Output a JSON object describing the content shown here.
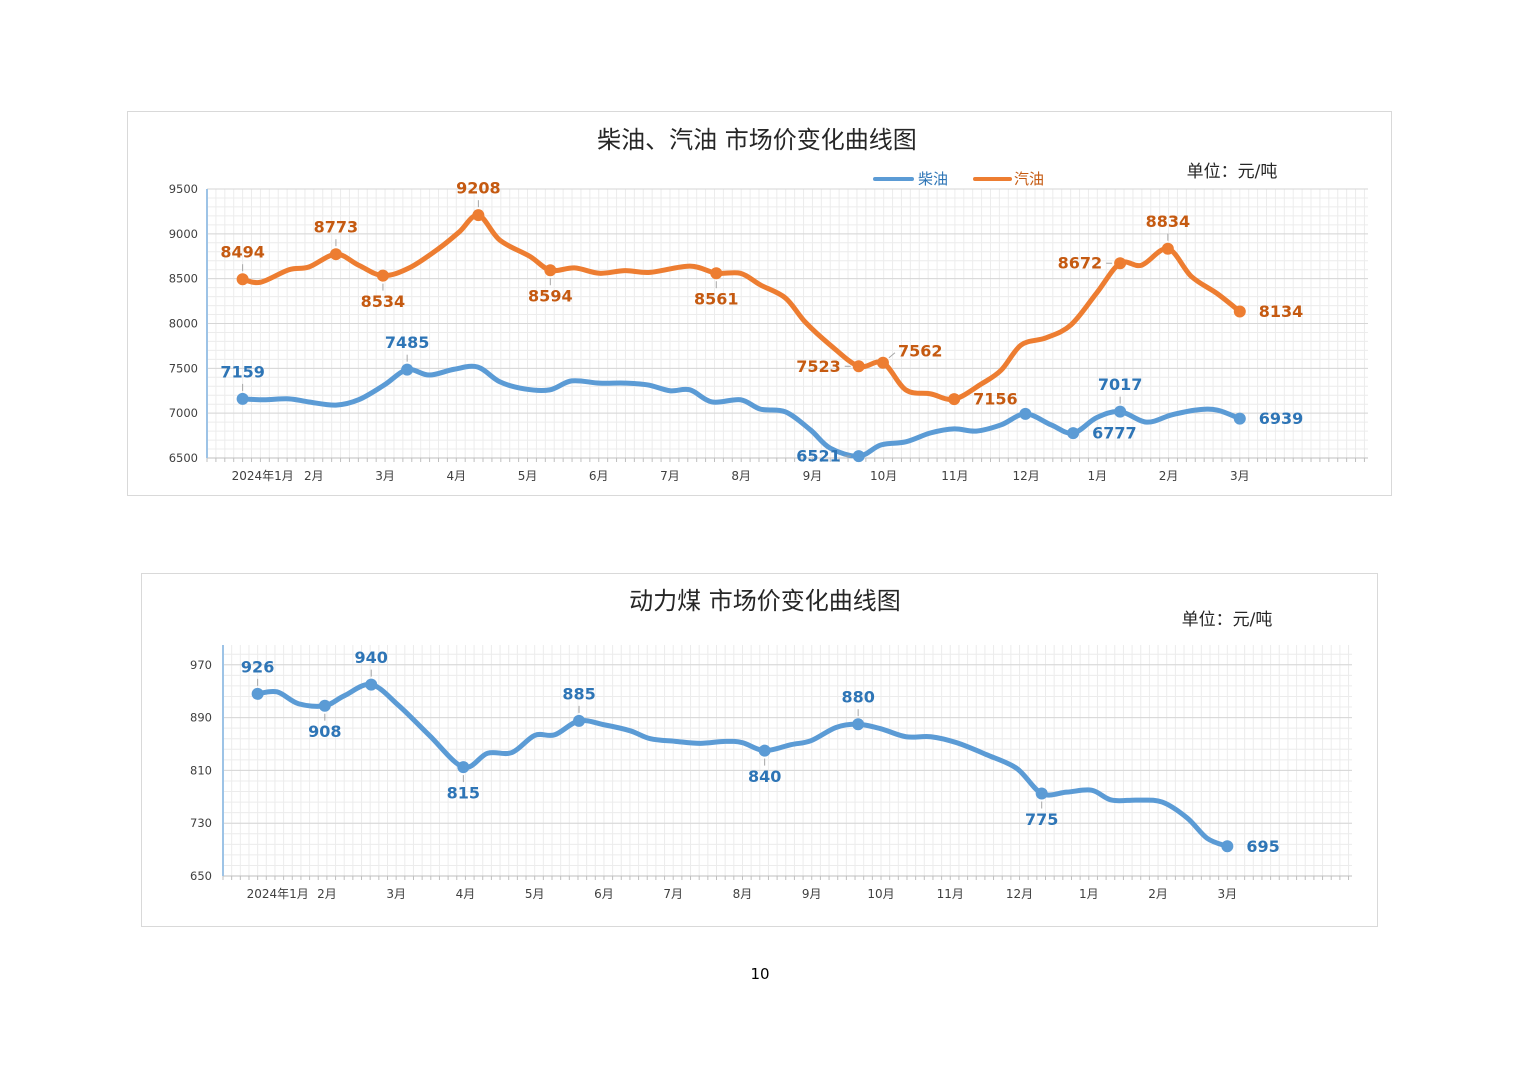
{
  "chart_data": [
    {
      "type": "line",
      "title": "柴油、汽油 市场价变化曲线图",
      "unit": "单位：元/吨",
      "categories": [
        "2024年1月",
        "2月",
        "3月",
        "4月",
        "5月",
        "6月",
        "7月",
        "8月",
        "9月",
        "10月",
        "11月",
        "12月",
        "1月",
        "2月",
        "3月"
      ],
      "xlim": [
        -0.5,
        15.8
      ],
      "ylim": [
        6500,
        9500
      ],
      "yticks": [
        6500,
        7000,
        7500,
        8000,
        8500,
        9000,
        9500
      ],
      "grid": true,
      "legend": "top-right",
      "series": [
        {
          "name": "柴油",
          "color": "#5B9BD5",
          "label_color": "#2E75B6",
          "points": [
            [
              0,
              7159
            ],
            [
              0.3,
              7150
            ],
            [
              0.65,
              7160
            ],
            [
              0.93,
              7125
            ],
            [
              1.31,
              7090
            ],
            [
              1.63,
              7150
            ],
            [
              1.99,
              7315
            ],
            [
              2.31,
              7485
            ],
            [
              2.62,
              7425
            ],
            [
              2.97,
              7490
            ],
            [
              3.3,
              7515
            ],
            [
              3.61,
              7350
            ],
            [
              3.96,
              7270
            ],
            [
              4.31,
              7260
            ],
            [
              4.62,
              7360
            ],
            [
              5.01,
              7335
            ],
            [
              5.37,
              7335
            ],
            [
              5.69,
              7315
            ],
            [
              6.0,
              7250
            ],
            [
              6.28,
              7260
            ],
            [
              6.59,
              7125
            ],
            [
              6.99,
              7150
            ],
            [
              7.27,
              7045
            ],
            [
              7.62,
              7015
            ],
            [
              7.97,
              6815
            ],
            [
              8.25,
              6610
            ],
            [
              8.65,
              6521
            ],
            [
              8.96,
              6645
            ],
            [
              9.31,
              6680
            ],
            [
              9.66,
              6780
            ],
            [
              9.99,
              6825
            ],
            [
              10.3,
              6800
            ],
            [
              10.65,
              6870
            ],
            [
              10.99,
              6992
            ],
            [
              11.35,
              6870
            ],
            [
              11.66,
              6777
            ],
            [
              11.99,
              6950
            ],
            [
              12.32,
              7017
            ],
            [
              12.69,
              6900
            ],
            [
              13.04,
              6980
            ],
            [
              13.39,
              7035
            ],
            [
              13.68,
              7035
            ],
            [
              14.0,
              6939
            ]
          ],
          "markers": [
            {
              "x": 0,
              "y": 7159,
              "label": "7159",
              "pos": "above"
            },
            {
              "x": 2.31,
              "y": 7485,
              "label": "7485",
              "pos": "above"
            },
            {
              "x": 8.65,
              "y": 6521,
              "label": "6521",
              "pos": "left"
            },
            {
              "x": 10.99,
              "y": 6992
            },
            {
              "x": 11.66,
              "y": 6777,
              "label": "6777",
              "pos": "right"
            },
            {
              "x": 12.32,
              "y": 7017,
              "label": "7017",
              "pos": "above"
            },
            {
              "x": 14.0,
              "y": 6939,
              "label": "6939",
              "pos": "right"
            }
          ]
        },
        {
          "name": "汽油",
          "color": "#ED7D31",
          "label_color": "#C55A11",
          "points": [
            [
              0,
              8494
            ],
            [
              0.25,
              8460
            ],
            [
              0.65,
              8600
            ],
            [
              0.93,
              8630
            ],
            [
              1.31,
              8773
            ],
            [
              1.63,
              8650
            ],
            [
              1.97,
              8534
            ],
            [
              2.34,
              8620
            ],
            [
              2.76,
              8840
            ],
            [
              3.04,
              9020
            ],
            [
              3.31,
              9208
            ],
            [
              3.61,
              8930
            ],
            [
              4.03,
              8750
            ],
            [
              4.32,
              8594
            ],
            [
              4.66,
              8620
            ],
            [
              5.01,
              8560
            ],
            [
              5.37,
              8590
            ],
            [
              5.72,
              8570
            ],
            [
              6.28,
              8640
            ],
            [
              6.65,
              8561
            ],
            [
              6.99,
              8560
            ],
            [
              7.27,
              8430
            ],
            [
              7.62,
              8285
            ],
            [
              7.9,
              8015
            ],
            [
              8.25,
              7760
            ],
            [
              8.65,
              7523
            ],
            [
              8.99,
              7562
            ],
            [
              9.31,
              7260
            ],
            [
              9.66,
              7215
            ],
            [
              9.99,
              7156
            ],
            [
              10.37,
              7325
            ],
            [
              10.65,
              7480
            ],
            [
              10.93,
              7760
            ],
            [
              11.28,
              7840
            ],
            [
              11.63,
              7985
            ],
            [
              11.99,
              8340
            ],
            [
              12.32,
              8672
            ],
            [
              12.62,
              8650
            ],
            [
              12.99,
              8834
            ],
            [
              13.32,
              8525
            ],
            [
              13.68,
              8335
            ],
            [
              14.0,
              8134
            ]
          ],
          "markers": [
            {
              "x": 0,
              "y": 8494,
              "label": "8494",
              "pos": "above"
            },
            {
              "x": 1.31,
              "y": 8773,
              "label": "8773",
              "pos": "above"
            },
            {
              "x": 1.97,
              "y": 8534,
              "label": "8534",
              "pos": "below"
            },
            {
              "x": 3.31,
              "y": 9208,
              "label": "9208",
              "pos": "above"
            },
            {
              "x": 4.32,
              "y": 8594,
              "label": "8594",
              "pos": "below"
            },
            {
              "x": 6.65,
              "y": 8561,
              "label": "8561",
              "pos": "below"
            },
            {
              "x": 8.65,
              "y": 7523,
              "label": "7523",
              "pos": "left"
            },
            {
              "x": 8.99,
              "y": 7562,
              "label": "7562",
              "pos": "above-right"
            },
            {
              "x": 9.99,
              "y": 7156,
              "label": "7156",
              "pos": "right"
            },
            {
              "x": 12.32,
              "y": 8672,
              "label": "8672",
              "pos": "left"
            },
            {
              "x": 12.99,
              "y": 8834,
              "label": "8834",
              "pos": "above"
            },
            {
              "x": 14.0,
              "y": 8134,
              "label": "8134",
              "pos": "right"
            }
          ]
        }
      ]
    },
    {
      "type": "line",
      "title": "动力煤 市场价变化曲线图",
      "unit": "单位：元/吨",
      "categories": [
        "2024年1月",
        "2月",
        "3月",
        "4月",
        "5月",
        "6月",
        "7月",
        "8月",
        "9月",
        "10月",
        "11月",
        "12月",
        "1月",
        "2月",
        "3月"
      ],
      "xlim": [
        -0.5,
        15.8
      ],
      "ylim": [
        650,
        1000
      ],
      "yticks": [
        650,
        730,
        810,
        890,
        970
      ],
      "grid": true,
      "legend": "none",
      "series": [
        {
          "color": "#5B9BD5",
          "label_color": "#2E75B6",
          "points": [
            [
              0,
              926
            ],
            [
              0.28,
              929
            ],
            [
              0.59,
              911
            ],
            [
              0.97,
              908
            ],
            [
              1.25,
              923
            ],
            [
              1.64,
              940
            ],
            [
              2.04,
              908
            ],
            [
              2.48,
              863
            ],
            [
              2.97,
              815
            ],
            [
              3.32,
              836
            ],
            [
              3.67,
              837
            ],
            [
              4.0,
              863
            ],
            [
              4.29,
              864
            ],
            [
              4.64,
              885
            ],
            [
              5.01,
              879
            ],
            [
              5.38,
              870
            ],
            [
              5.67,
              858
            ],
            [
              6.03,
              854
            ],
            [
              6.39,
              851
            ],
            [
              6.75,
              854
            ],
            [
              7.0,
              852
            ],
            [
              7.32,
              840
            ],
            [
              7.7,
              849
            ],
            [
              7.99,
              855
            ],
            [
              8.35,
              875
            ],
            [
              8.67,
              880
            ],
            [
              9.0,
              873
            ],
            [
              9.36,
              861
            ],
            [
              9.72,
              861
            ],
            [
              10.09,
              852
            ],
            [
              10.52,
              834
            ],
            [
              10.96,
              813
            ],
            [
              11.32,
              775
            ],
            [
              11.68,
              777
            ],
            [
              12.04,
              780
            ],
            [
              12.33,
              765
            ],
            [
              12.7,
              765
            ],
            [
              13.06,
              762
            ],
            [
              13.42,
              738
            ],
            [
              13.71,
              707
            ],
            [
              14.0,
              695
            ]
          ],
          "markers": [
            {
              "x": 0,
              "y": 926,
              "label": "926",
              "pos": "above"
            },
            {
              "x": 0.97,
              "y": 908,
              "label": "908",
              "pos": "below"
            },
            {
              "x": 1.64,
              "y": 940,
              "label": "940",
              "pos": "above"
            },
            {
              "x": 2.97,
              "y": 815,
              "label": "815",
              "pos": "below"
            },
            {
              "x": 4.64,
              "y": 885,
              "label": "885",
              "pos": "above"
            },
            {
              "x": 7.32,
              "y": 840,
              "label": "840",
              "pos": "below"
            },
            {
              "x": 8.67,
              "y": 880,
              "label": "880",
              "pos": "above"
            },
            {
              "x": 11.32,
              "y": 775,
              "label": "775",
              "pos": "below"
            },
            {
              "x": 14.0,
              "y": 695,
              "label": "695",
              "pos": "right"
            }
          ]
        }
      ]
    }
  ],
  "page_number": "10"
}
